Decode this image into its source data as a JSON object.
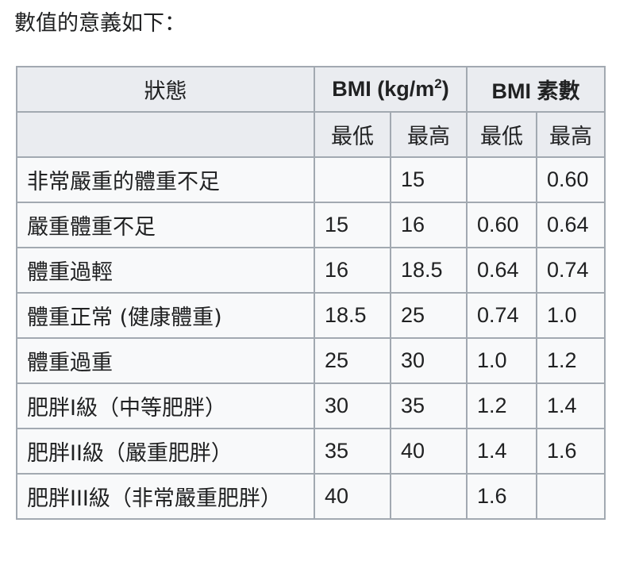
{
  "intro_text": "數值的意義如下：",
  "table": {
    "header": {
      "state": "狀態",
      "bmi_group_prefix": "BMI (kg/m",
      "bmi_group_sup": "2",
      "bmi_group_suffix": ")",
      "prime_group": "BMI 素數",
      "bmi_min": "最低",
      "bmi_max": "最高",
      "prime_min": "最低",
      "prime_max": "最高"
    },
    "rows": [
      {
        "state": "非常嚴重的體重不足",
        "bmi_min": "",
        "bmi_max": "15",
        "prime_min": "",
        "prime_max": "0.60"
      },
      {
        "state": "嚴重體重不足",
        "bmi_min": "15",
        "bmi_max": "16",
        "prime_min": "0.60",
        "prime_max": "0.64"
      },
      {
        "state": "體重過輕",
        "bmi_min": "16",
        "bmi_max": "18.5",
        "prime_min": "0.64",
        "prime_max": "0.74"
      },
      {
        "state": "體重正常 (健康體重)",
        "bmi_min": "18.5",
        "bmi_max": "25",
        "prime_min": "0.74",
        "prime_max": "1.0"
      },
      {
        "state": "體重過重",
        "bmi_min": "25",
        "bmi_max": "30",
        "prime_min": "1.0",
        "prime_max": "1.2"
      },
      {
        "state": "肥胖I級（中等肥胖）",
        "bmi_min": "30",
        "bmi_max": "35",
        "prime_min": "1.2",
        "prime_max": "1.4"
      },
      {
        "state": "肥胖II級（嚴重肥胖）",
        "bmi_min": "35",
        "bmi_max": "40",
        "prime_min": "1.4",
        "prime_max": "1.6"
      },
      {
        "state": "肥胖III級（非常嚴重肥胖）",
        "bmi_min": "40",
        "bmi_max": "",
        "prime_min": "1.6",
        "prime_max": ""
      }
    ]
  }
}
